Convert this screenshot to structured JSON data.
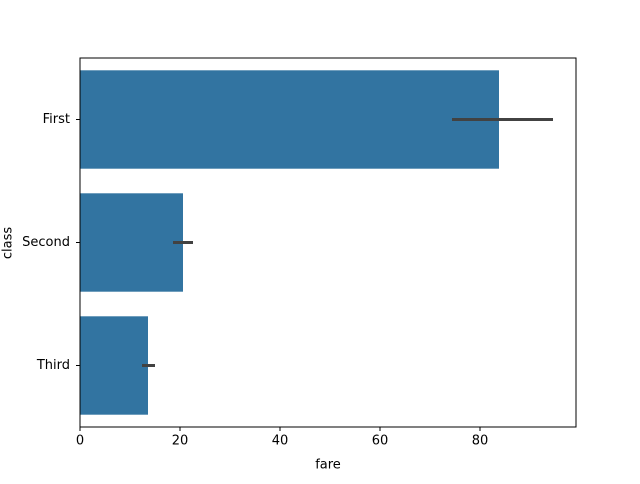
{
  "chart_data": {
    "type": "hbar",
    "x_label": "fare",
    "y_label": "class",
    "categories": [
      "First",
      "Second",
      "Third"
    ],
    "values": [
      83.8,
      20.6,
      13.6
    ],
    "ci": [
      [
        74.4,
        94.6
      ],
      [
        18.6,
        22.6
      ],
      [
        12.4,
        15.0
      ]
    ],
    "color": "#3274a1",
    "errorbar_color": "#424242",
    "xlim": [
      0,
      99.2
    ],
    "xticks": [
      0,
      20,
      40,
      60,
      80
    ]
  }
}
